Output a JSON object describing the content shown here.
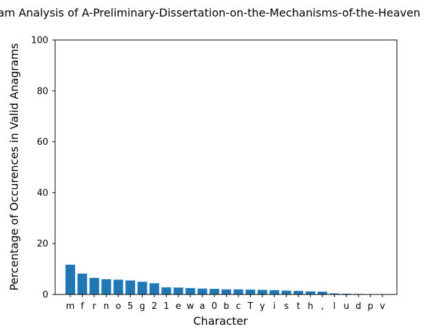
{
  "chart_data": {
    "type": "bar",
    "title": "ram Analysis of A-Preliminary-Dissertation-on-the-Mechanisms-of-the-Heaven",
    "xlabel": "Character",
    "ylabel": "Percentage of Occurences in Valid Anagrams",
    "ylim": [
      0,
      100
    ],
    "yticks": [
      "0",
      "20",
      "40",
      "60",
      "80",
      "100"
    ],
    "grid": false,
    "bar_color": "#1f77b4",
    "categories": [
      "m",
      "f",
      "r",
      "n",
      "o",
      "5",
      "g",
      "2",
      "1",
      "e",
      "w",
      "a",
      "0",
      "b",
      "c",
      "T",
      "y",
      "i",
      "s",
      "t",
      "h",
      ",",
      "l",
      "u",
      "d",
      "p",
      "v"
    ],
    "values": [
      11.7,
      8.2,
      6.5,
      6.0,
      5.8,
      5.5,
      5.0,
      4.4,
      2.8,
      2.7,
      2.5,
      2.3,
      2.2,
      2.0,
      2.0,
      1.9,
      1.8,
      1.7,
      1.5,
      1.4,
      1.2,
      1.1,
      0.4,
      0.3,
      0.2,
      0.1,
      0.05
    ]
  }
}
